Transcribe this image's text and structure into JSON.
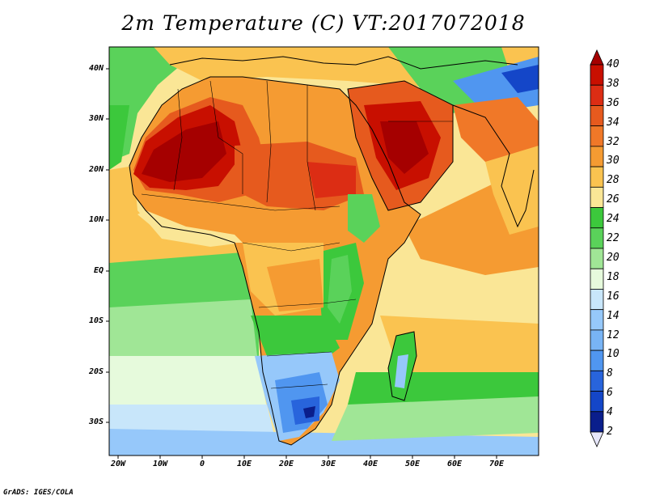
{
  "title": "2m Temperature (C) VT:2017072018",
  "credit": "GrADS: IGES/COLA",
  "map": {
    "region": "Africa and Arabian Peninsula",
    "lat_range": [
      "35S",
      "45N"
    ],
    "lon_range": [
      "22W",
      "80E"
    ],
    "y_axis_labels": [
      "40N",
      "30N",
      "20N",
      "10N",
      "EQ",
      "10S",
      "20S",
      "30S"
    ],
    "x_axis_labels": [
      "20W",
      "10W",
      "0",
      "10E",
      "20E",
      "30E",
      "40E",
      "50E",
      "60E",
      "70E"
    ]
  },
  "colorbar": {
    "labels": [
      "40",
      "38",
      "36",
      "34",
      "32",
      "30",
      "28",
      "26",
      "24",
      "22",
      "20",
      "18",
      "16",
      "14",
      "12",
      "10",
      "8",
      "6",
      "4",
      "2"
    ],
    "colors": [
      "#a50000",
      "#c80f00",
      "#dc2d14",
      "#e65a1e",
      "#f07828",
      "#f59b32",
      "#fac350",
      "#fae696",
      "#3cc83c",
      "#5ad25a",
      "#a0e696",
      "#e6fadc",
      "#c8e6fa",
      "#96c8fa",
      "#78b4f5",
      "#5096f0",
      "#2864dc",
      "#1446c8",
      "#0a1e8c",
      "#e6e6fa"
    ]
  }
}
